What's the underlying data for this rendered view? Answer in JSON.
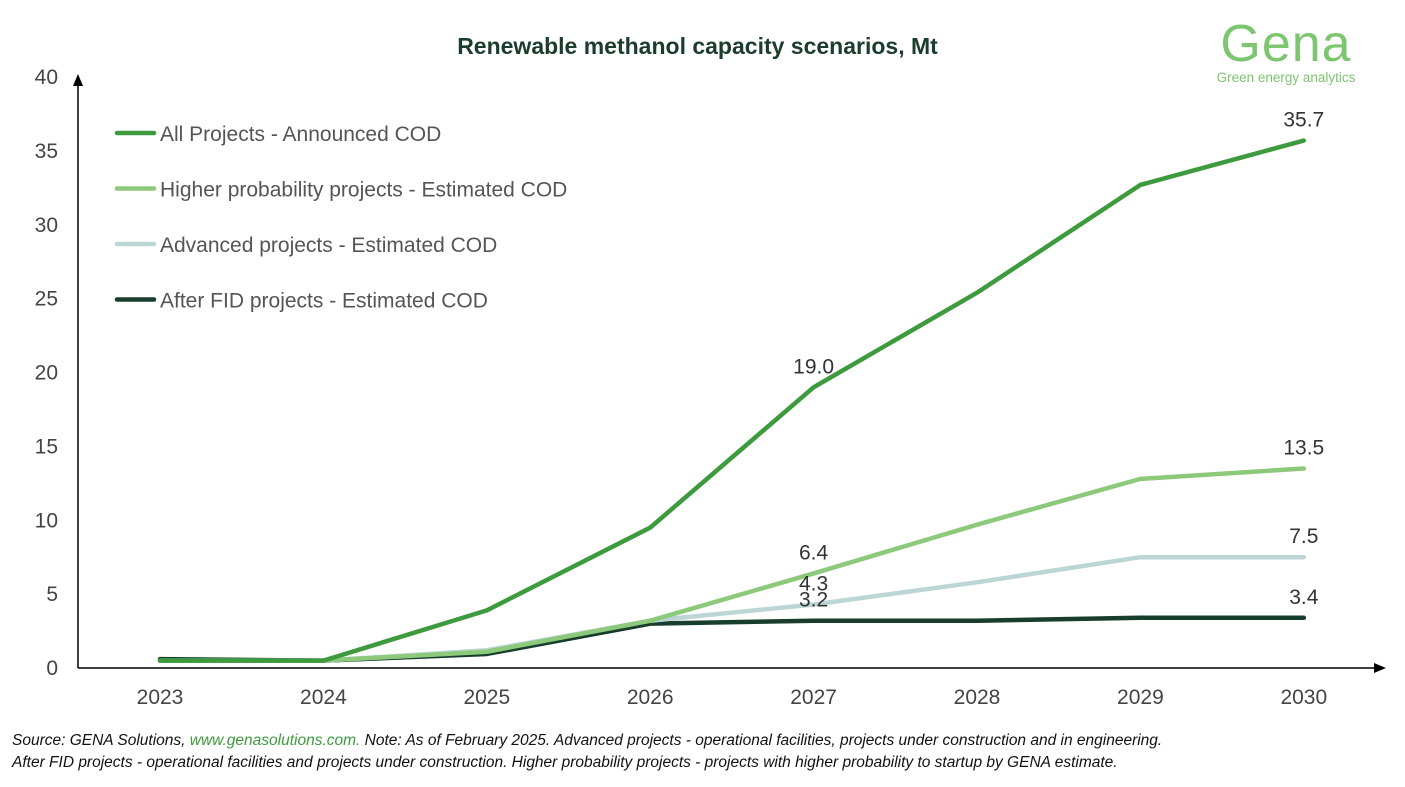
{
  "chart_data": {
    "type": "line",
    "title": "Renewable methanol capacity scenarios, Mt",
    "xlabel": "",
    "ylabel": "",
    "categories": [
      "2023",
      "2024",
      "2025",
      "2026",
      "2027",
      "2028",
      "2029",
      "2030"
    ],
    "ylim": [
      0,
      40
    ],
    "yticks": [
      0,
      5,
      10,
      15,
      20,
      25,
      30,
      35,
      40
    ],
    "grid": false,
    "legend_placement": "top-left",
    "series": [
      {
        "name": "All Projects - Announced COD",
        "color": "#3d9b3d",
        "values": [
          0.5,
          0.5,
          3.9,
          9.5,
          19.0,
          25.4,
          32.7,
          35.7
        ],
        "labels": {
          "4": "19.0",
          "7": "35.7"
        }
      },
      {
        "name": "Higher probability projects - Estimated COD",
        "color": "#8cc97a",
        "values": [
          0.5,
          0.5,
          1.1,
          3.2,
          6.4,
          9.7,
          12.8,
          13.5
        ],
        "labels": {
          "4": "6.4",
          "7": "13.5"
        }
      },
      {
        "name": "Advanced projects - Estimated COD",
        "color": "#bcd5d5",
        "values": [
          0.5,
          0.5,
          1.2,
          3.2,
          4.3,
          5.8,
          7.5,
          7.5
        ],
        "labels": {
          "4": "4.3",
          "7": "7.5"
        }
      },
      {
        "name": "After FID projects - Estimated COD",
        "color": "#173d2c",
        "values": [
          0.6,
          0.5,
          0.95,
          3.0,
          3.2,
          3.2,
          3.4,
          3.4
        ],
        "labels": {
          "4": "3.2",
          "7": "3.4"
        }
      }
    ]
  },
  "logo": {
    "name": "Gena",
    "tagline": "Green energy analytics"
  },
  "note": {
    "prefix": "Source: GENA Solutions, ",
    "link": "www.genasolutions.com.",
    "line1_rest": " Note: As of February 2025. Advanced projects - operational facilities, projects under construction and in engineering.",
    "line2": "After FID projects - operational facilities and projects under construction. Higher probability projects - projects with higher probability to startup by GENA estimate."
  }
}
